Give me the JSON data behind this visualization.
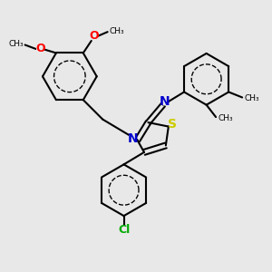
{
  "bg_color": "#e8e8e8",
  "bond_color": "#000000",
  "N_color": "#0000cc",
  "S_color": "#cccc00",
  "O_color": "#ff0000",
  "Cl_color": "#00aa00",
  "text_color": "#000000",
  "bond_width": 1.5,
  "font_size": 9.0,
  "figsize": [
    3.0,
    3.0
  ],
  "dpi": 100,
  "xlim": [
    0,
    10
  ],
  "ylim": [
    0,
    10
  ]
}
